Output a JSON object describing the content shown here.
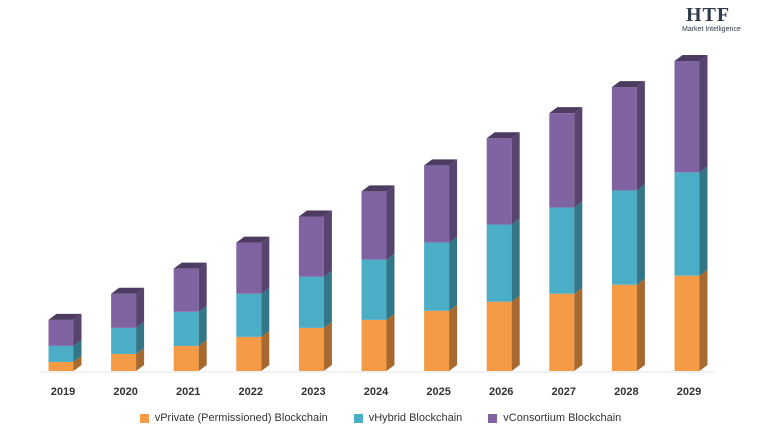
{
  "logo": {
    "main": "HTF",
    "sub": "Market Intelligence"
  },
  "colors": {
    "private": "#f59a45",
    "hybrid": "#4badc6",
    "consortium": "#8064a2"
  },
  "chart_data": {
    "type": "bar",
    "stacked": true,
    "style": "3d-column",
    "title": "",
    "xlabel": "",
    "ylabel": "",
    "grid": false,
    "legend_position": "bottom",
    "categories": [
      "2019",
      "2020",
      "2021",
      "2022",
      "2023",
      "2024",
      "2025",
      "2026",
      "2027",
      "2028",
      "2029"
    ],
    "series": [
      {
        "name": "vPrivate (Permissioned) Blockchain",
        "values": [
          9,
          17,
          25,
          34,
          43,
          51,
          60,
          69,
          77,
          86,
          95
        ]
      },
      {
        "name": "vHybrid Blockchain",
        "values": [
          16,
          26,
          34,
          43,
          51,
          60,
          68,
          77,
          86,
          94,
          103
        ]
      },
      {
        "name": "vConsortium Blockchain",
        "values": [
          26,
          34,
          43,
          51,
          60,
          68,
          77,
          86,
          94,
          103,
          111
        ]
      }
    ]
  }
}
